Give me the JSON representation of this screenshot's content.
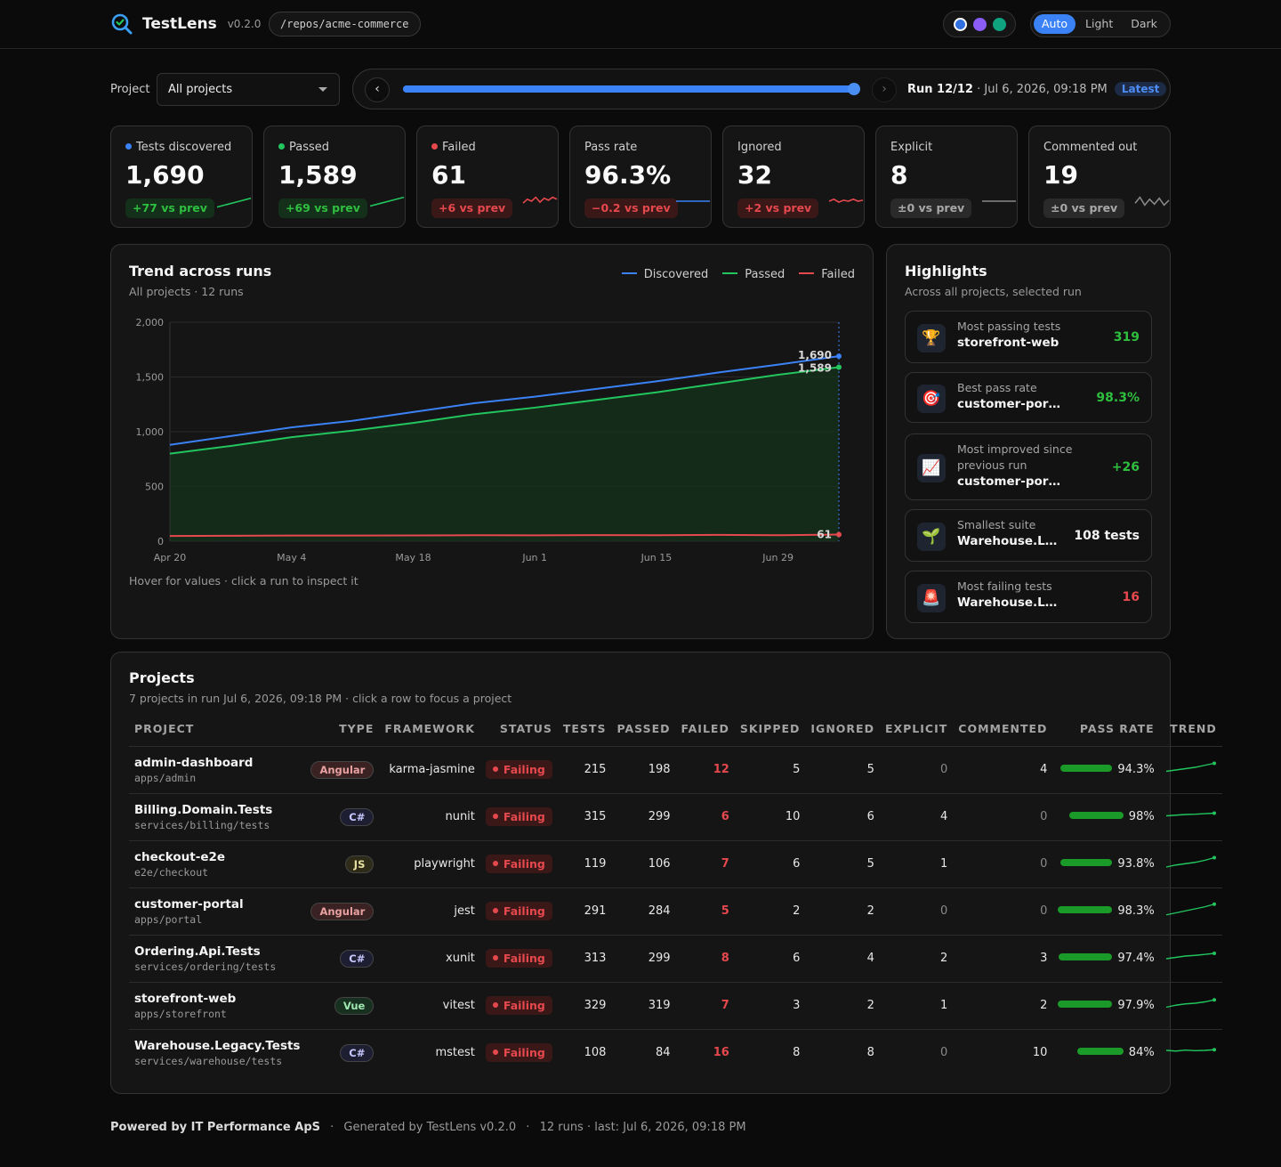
{
  "app": {
    "name": "TestLens",
    "version": "v0.2.0",
    "repo_path": "/repos/acme-commerce"
  },
  "theme": {
    "options": [
      "Auto",
      "Light",
      "Dark"
    ],
    "selected": "Auto",
    "swatches": [
      "#2f6fe0",
      "#8b5cf6",
      "#10a37f"
    ]
  },
  "filter": {
    "label": "Project",
    "value": "All projects"
  },
  "run": {
    "prev": "‹",
    "next": "›",
    "label": "Run 12/12",
    "date": "· Jul 6, 2026, 09:18 PM",
    "badge": "Latest",
    "position": 1.0
  },
  "stats": [
    {
      "label": "Tests discovered",
      "value": "1,690",
      "delta": "+77 vs prev",
      "tone": "green",
      "dot": "#3b82f6"
    },
    {
      "label": "Passed",
      "value": "1,589",
      "delta": "+69 vs prev",
      "tone": "green",
      "dot": "#22c55e"
    },
    {
      "label": "Failed",
      "value": "61",
      "delta": "+6 vs prev",
      "tone": "red",
      "dot": "#e5484d"
    },
    {
      "label": "Pass rate",
      "value": "96.3%",
      "delta": "−0.2 vs prev",
      "tone": "red",
      "dot": ""
    },
    {
      "label": "Ignored",
      "value": "32",
      "delta": "+2 vs prev",
      "tone": "red",
      "dot": ""
    },
    {
      "label": "Explicit",
      "value": "8",
      "delta": "±0 vs prev",
      "tone": "gray",
      "dot": ""
    },
    {
      "label": "Commented out",
      "value": "19",
      "delta": "±0 vs prev",
      "tone": "gray",
      "dot": ""
    }
  ],
  "trend": {
    "title": "Trend across runs",
    "subtitle": "All projects · 12 runs",
    "hint": "Hover for values · click a run to inspect it",
    "legend": [
      "Discovered",
      "Passed",
      "Failed"
    ],
    "end_labels": [
      "1,690",
      "1,589",
      "61"
    ]
  },
  "chart_data": {
    "type": "area",
    "x": [
      "Apr 20",
      "Apr 27",
      "May 4",
      "May 11",
      "May 18",
      "May 25",
      "Jun 1",
      "Jun 8",
      "Jun 15",
      "Jun 22",
      "Jun 29",
      "Jul 6"
    ],
    "x_ticks": [
      "Apr 20",
      "May 4",
      "May 18",
      "Jun 1",
      "Jun 15",
      "Jun 29"
    ],
    "y_ticks": [
      "0",
      "500",
      "1,000",
      "1,500",
      "2,000"
    ],
    "ylim": [
      0,
      2000
    ],
    "series": [
      {
        "name": "Discovered",
        "color": "#3b82f6",
        "values": [
          880,
          960,
          1040,
          1100,
          1180,
          1260,
          1320,
          1390,
          1460,
          1540,
          1613,
          1690
        ]
      },
      {
        "name": "Passed",
        "color": "#22c55e",
        "values": [
          800,
          870,
          950,
          1010,
          1080,
          1160,
          1220,
          1290,
          1360,
          1440,
          1520,
          1589
        ]
      },
      {
        "name": "Failed",
        "color": "#e5484d",
        "values": [
          48,
          50,
          52,
          52,
          53,
          55,
          54,
          56,
          55,
          58,
          55,
          61
        ]
      }
    ],
    "grid": true
  },
  "highlights": {
    "title": "Highlights",
    "subtitle": "Across all projects, selected run",
    "items": [
      {
        "icon": "🏆",
        "icon_name": "trophy-icon",
        "label": "Most passing tests",
        "name": "storefront-web",
        "value": "319",
        "color": "#2fbf3f"
      },
      {
        "icon": "🎯",
        "icon_name": "target-icon",
        "label": "Best pass rate",
        "name": "customer-portal",
        "value": "98.3%",
        "color": "#2fbf3f"
      },
      {
        "icon": "📈",
        "icon_name": "chart-increasing-icon",
        "label": "Most improved since previous run",
        "name": "customer-portal",
        "value": "+26",
        "color": "#2fbf3f"
      },
      {
        "icon": "🌱",
        "icon_name": "seedling-icon",
        "label": "Smallest suite",
        "name": "Warehouse.Legacy.Tests",
        "value": "108 tests",
        "color": "#f5f5f5"
      },
      {
        "icon": "🚨",
        "icon_name": "siren-icon",
        "label": "Most failing tests",
        "name": "Warehouse.Legacy.Tests",
        "value": "16",
        "color": "#e5484d"
      }
    ]
  },
  "projects": {
    "title": "Projects",
    "subtitle": "7 projects in run Jul 6, 2026, 09:18 PM · click a row to focus a project",
    "columns": [
      "PROJECT",
      "TYPE",
      "FRAMEWORK",
      "STATUS",
      "TESTS",
      "PASSED",
      "FAILED",
      "SKIPPED",
      "IGNORED",
      "EXPLICIT",
      "COMMENTED",
      "PASS RATE",
      "TREND"
    ],
    "rows": [
      {
        "name": "admin-dashboard",
        "path": "apps/admin",
        "type": "Angular",
        "type_color": "#e8a0a0",
        "type_bg": "#3a2222",
        "framework": "karma-jasmine",
        "status": "Failing",
        "tests": "215",
        "passed": "198",
        "failed": "12",
        "skipped": "5",
        "ignored": "5",
        "explicit": "0",
        "commented": "4",
        "pass_rate": "94.3%",
        "rate": 0.943,
        "trend": [
          0.3,
          0.4,
          0.5,
          0.6,
          0.75,
          0.9
        ]
      },
      {
        "name": "Billing.Domain.Tests",
        "path": "services/billing/tests",
        "type": "C#",
        "type_color": "#c8c8ff",
        "type_bg": "#1e1e33",
        "framework": "nunit",
        "status": "Failing",
        "tests": "315",
        "passed": "299",
        "failed": "6",
        "skipped": "10",
        "ignored": "6",
        "explicit": "4",
        "commented": "0",
        "pass_rate": "98%",
        "rate": 0.98,
        "trend": [
          0.5,
          0.55,
          0.6,
          0.62,
          0.66,
          0.7
        ]
      },
      {
        "name": "checkout-e2e",
        "path": "e2e/checkout",
        "type": "JS",
        "type_color": "#e8e0a0",
        "type_bg": "#2e2c18",
        "framework": "playwright",
        "status": "Failing",
        "tests": "119",
        "passed": "106",
        "failed": "7",
        "skipped": "6",
        "ignored": "5",
        "explicit": "1",
        "commented": "0",
        "pass_rate": "93.8%",
        "rate": 0.938,
        "trend": [
          0.2,
          0.35,
          0.45,
          0.55,
          0.7,
          0.9
        ]
      },
      {
        "name": "customer-portal",
        "path": "apps/portal",
        "type": "Angular",
        "type_color": "#e8a0a0",
        "type_bg": "#3a2222",
        "framework": "jest",
        "status": "Failing",
        "tests": "291",
        "passed": "284",
        "failed": "5",
        "skipped": "2",
        "ignored": "2",
        "explicit": "0",
        "commented": "0",
        "pass_rate": "98.3%",
        "rate": 0.983,
        "trend": [
          0.15,
          0.3,
          0.45,
          0.6,
          0.75,
          0.95
        ]
      },
      {
        "name": "Ordering.Api.Tests",
        "path": "services/ordering/tests",
        "type": "C#",
        "type_color": "#c8c8ff",
        "type_bg": "#1e1e33",
        "framework": "xunit",
        "status": "Failing",
        "tests": "313",
        "passed": "299",
        "failed": "8",
        "skipped": "6",
        "ignored": "4",
        "explicit": "2",
        "commented": "3",
        "pass_rate": "97.4%",
        "rate": 0.974,
        "trend": [
          0.4,
          0.5,
          0.6,
          0.65,
          0.72,
          0.8
        ]
      },
      {
        "name": "storefront-web",
        "path": "apps/storefront",
        "type": "Vue",
        "type_color": "#a0e8b0",
        "type_bg": "#18301f",
        "framework": "vitest",
        "status": "Failing",
        "tests": "329",
        "passed": "319",
        "failed": "7",
        "skipped": "3",
        "ignored": "2",
        "explicit": "1",
        "commented": "2",
        "pass_rate": "97.9%",
        "rate": 0.979,
        "trend": [
          0.3,
          0.45,
          0.55,
          0.6,
          0.7,
          0.85
        ]
      },
      {
        "name": "Warehouse.Legacy.Tests",
        "path": "services/warehouse/tests",
        "type": "C#",
        "type_color": "#c8c8ff",
        "type_bg": "#1e1e33",
        "framework": "mstest",
        "status": "Failing",
        "tests": "108",
        "passed": "84",
        "failed": "16",
        "skipped": "8",
        "ignored": "8",
        "explicit": "0",
        "commented": "10",
        "pass_rate": "84%",
        "rate": 0.84,
        "trend": [
          0.6,
          0.55,
          0.62,
          0.58,
          0.6,
          0.65
        ]
      }
    ]
  },
  "footer": {
    "brand": "Powered by IT Performance ApS",
    "generated": "Generated by TestLens v0.2.0",
    "runs": "12 runs · last: Jul 6, 2026, 09:18 PM",
    "sep": "·"
  }
}
